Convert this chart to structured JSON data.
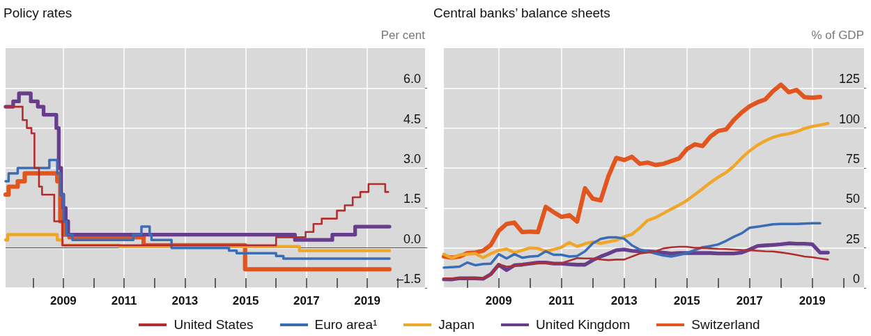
{
  "chart_data": [
    {
      "type": "step",
      "title": "Policy rates",
      "ylabel": "Per cent",
      "xlim": [
        2007.1,
        2020.9
      ],
      "xticks": [
        {
          "value": 2008,
          "label": null
        },
        2009,
        {
          "value": 2010,
          "label": null
        },
        2011,
        {
          "value": 2012,
          "label": null
        },
        2013,
        {
          "value": 2014,
          "label": null
        },
        2015,
        {
          "value": 2016,
          "label": null
        },
        2017,
        {
          "value": 2018,
          "label": null
        },
        2019,
        {
          "value": 2020,
          "label": null
        }
      ],
      "ylim": [
        -1.5,
        7.5
      ],
      "yticks": [
        {
          "value": -1.5,
          "label": "–1.5"
        },
        {
          "value": 0,
          "label": "0.0"
        },
        1.5,
        {
          "value": 3,
          "label": "3.0"
        },
        4.5,
        {
          "value": 6,
          "label": "6.0"
        }
      ],
      "grid": true,
      "legend": "bottom",
      "marker": "none",
      "ref_lines": [
        {
          "axis": "y",
          "value": 0,
          "color": "#4d4d4d"
        }
      ],
      "series": [
        {
          "name": "United States",
          "color": "#b22e2e",
          "x": [
            2007.1,
            2007.66,
            2007.8,
            2007.95,
            2008.05,
            2008.2,
            2008.3,
            2008.7,
            2008.97,
            2016.0,
            2016.97,
            2017.23,
            2017.5,
            2018.0,
            2018.26,
            2018.52,
            2018.77,
            2019.04,
            2019.59,
            2019.69
          ],
          "values": [
            5.3,
            4.8,
            4.5,
            4.3,
            3.0,
            2.3,
            2.0,
            1.0,
            0.1,
            0.4,
            0.6,
            0.9,
            1.1,
            1.4,
            1.6,
            1.9,
            2.1,
            2.4,
            2.1,
            2.1
          ]
        },
        {
          "name": "Euro area¹",
          "color": "#3a6db5",
          "x": [
            2007.1,
            2007.2,
            2007.5,
            2008.54,
            2008.8,
            2008.9,
            2009.0,
            2009.1,
            2009.3,
            2011.3,
            2011.57,
            2011.84,
            2011.9,
            2012.56,
            2014.45,
            2014.7,
            2016.0,
            2016.24,
            2019.73
          ],
          "values": [
            2.5,
            2.8,
            3.0,
            3.3,
            2.8,
            2.0,
            1.0,
            0.5,
            0.3,
            0.5,
            0.8,
            0.5,
            0.3,
            0.0,
            -0.1,
            -0.2,
            -0.3,
            -0.4,
            -0.4
          ]
        },
        {
          "name": "Japan",
          "color": "#f0a628",
          "x": [
            2007.1,
            2007.17,
            2008.8,
            2008.97,
            2010.84,
            2016.77,
            2019.73
          ],
          "values": [
            0.3,
            0.5,
            0.3,
            0.1,
            0.05,
            -0.1,
            -0.1
          ]
        },
        {
          "name": "United Kingdom",
          "color": "#673d8c",
          "x": [
            2007.1,
            2007.35,
            2007.54,
            2007.93,
            2008.16,
            2008.35,
            2008.77,
            2008.85,
            2008.93,
            2009.0,
            2009.08,
            2009.16,
            2016.62,
            2017.85,
            2018.6,
            2019.73
          ],
          "values": [
            5.3,
            5.5,
            5.8,
            5.5,
            5.3,
            5.0,
            4.5,
            3.0,
            2.0,
            1.5,
            1.0,
            0.5,
            0.3,
            0.5,
            0.8,
            0.8
          ]
        },
        {
          "name": "Switzerland",
          "color": "#e0561e",
          "x": [
            2007.1,
            2007.2,
            2007.5,
            2007.73,
            2008.8,
            2008.9,
            2009.0,
            2009.2,
            2011.64,
            2014.98,
            2019.73
          ],
          "values": [
            2.0,
            2.3,
            2.5,
            2.8,
            2.5,
            1.0,
            0.5,
            0.4,
            0.1,
            -0.8,
            -0.8
          ]
        }
      ]
    },
    {
      "type": "line",
      "title": "Central banks’ balance sheets",
      "ylabel": "% of GDP",
      "xlim": [
        2007.25,
        2020.65
      ],
      "xticks": [
        {
          "value": 2008,
          "label": null
        },
        2009,
        {
          "value": 2010,
          "label": null
        },
        2011,
        {
          "value": 2012,
          "label": null
        },
        2013,
        {
          "value": 2014,
          "label": null
        },
        2015,
        {
          "value": 2016,
          "label": null
        },
        2017,
        {
          "value": 2018,
          "label": null
        },
        2019,
        {
          "value": 2020,
          "label": null
        }
      ],
      "ylim": [
        0,
        150
      ],
      "yticks": [
        0,
        25,
        50,
        75,
        100,
        125
      ],
      "grid": true,
      "legend": "bottom",
      "marker": "none",
      "x": [
        2007.25,
        2007.5,
        2007.75,
        2008,
        2008.25,
        2008.5,
        2008.75,
        2009,
        2009.25,
        2009.5,
        2009.75,
        2010,
        2010.25,
        2010.5,
        2010.75,
        2011,
        2011.25,
        2011.5,
        2011.75,
        2012,
        2012.25,
        2012.5,
        2012.75,
        2013,
        2013.25,
        2013.5,
        2013.75,
        2014,
        2014.25,
        2014.5,
        2014.75,
        2015,
        2015.25,
        2015.5,
        2015.75,
        2016,
        2016.25,
        2016.5,
        2016.75,
        2017,
        2017.25,
        2017.5,
        2017.75,
        2018,
        2018.25,
        2018.5,
        2018.75,
        2019,
        2019.25,
        2019.5
      ],
      "series": [
        {
          "name": "United States",
          "color": "#b22e2e",
          "values": [
            6.0,
            6.0,
            6.1,
            6.1,
            6.0,
            6.0,
            8.3,
            14.8,
            13.3,
            13.7,
            14.5,
            15.2,
            15.5,
            15.5,
            15.2,
            15.5,
            17.0,
            18.6,
            18.4,
            18.4,
            17.8,
            17.4,
            17.7,
            17.7,
            19.6,
            21.5,
            22.1,
            22.9,
            24.7,
            25.4,
            25.7,
            25.7,
            25.1,
            25.0,
            24.7,
            24.4,
            24.3,
            24.0,
            23.7,
            23.6,
            23.2,
            22.9,
            22.8,
            22.2,
            21.5,
            20.6,
            19.6,
            19.2,
            18.4,
            17.7
          ]
        },
        {
          "name": "Euro area¹",
          "color": "#3a6db5",
          "values": [
            12.7,
            13.0,
            13.3,
            15.9,
            14.2,
            14.9,
            15.2,
            21.1,
            18.4,
            21.1,
            18.9,
            19.6,
            19.9,
            22.9,
            20.7,
            20.7,
            19.6,
            20.0,
            22.9,
            27.9,
            30.6,
            31.6,
            31.6,
            30.8,
            26.6,
            24.0,
            22.9,
            21.5,
            20.3,
            19.6,
            20.6,
            21.8,
            23.6,
            25.4,
            26.2,
            27.2,
            29.4,
            32.0,
            34.2,
            37.6,
            38.3,
            39.0,
            39.8,
            40.0,
            40.0,
            40.0,
            40.2,
            40.4,
            40.4,
            null
          ]
        },
        {
          "name": "Japan",
          "color": "#f0a628",
          "values": [
            21.1,
            18.6,
            20.6,
            21.1,
            21.5,
            18.9,
            21.5,
            23.5,
            24.3,
            22.1,
            23.5,
            25.0,
            24.7,
            22.9,
            24.0,
            25.4,
            28.4,
            25.9,
            27.6,
            28.8,
            27.9,
            28.8,
            29.8,
            32.0,
            33.5,
            37.6,
            42.2,
            44.0,
            46.6,
            49.3,
            51.8,
            54.7,
            58.3,
            62.0,
            65.9,
            69.3,
            72.2,
            76.2,
            81.3,
            85.7,
            89.3,
            92.0,
            94.2,
            95.6,
            96.4,
            97.8,
            99.7,
            101.0,
            101.9,
            102.9
          ]
        },
        {
          "name": "United Kingdom",
          "color": "#673d8c",
          "values": [
            5.4,
            5.3,
            6.0,
            6.0,
            6.0,
            5.7,
            8.6,
            14.5,
            11.1,
            14.2,
            14.5,
            15.2,
            15.9,
            15.9,
            15.2,
            15.2,
            14.8,
            14.5,
            14.5,
            17.4,
            19.6,
            21.5,
            23.6,
            24.0,
            23.2,
            22.9,
            22.9,
            22.5,
            22.1,
            21.5,
            21.8,
            21.8,
            21.8,
            21.8,
            21.8,
            21.5,
            21.5,
            21.5,
            22.1,
            24.0,
            26.2,
            26.6,
            26.9,
            27.3,
            27.9,
            27.6,
            27.6,
            27.3,
            22.1,
            22.1
          ]
        },
        {
          "name": "Switzerland",
          "color": "#e0561e",
          "values": [
            19.6,
            18.9,
            19.6,
            21.8,
            22.1,
            23.2,
            26.9,
            35.7,
            40.0,
            40.8,
            34.9,
            35.2,
            34.9,
            50.7,
            47.4,
            44.4,
            45.5,
            41.5,
            62.3,
            55.8,
            54.7,
            70.0,
            81.3,
            80.0,
            82.0,
            77.6,
            78.4,
            76.9,
            77.6,
            79.3,
            81.0,
            86.8,
            89.8,
            88.7,
            94.6,
            98.2,
            99.1,
            105.1,
            109.8,
            113.6,
            116.1,
            117.9,
            123.1,
            127.1,
            122.4,
            123.8,
            119.3,
            119.0,
            119.4,
            null
          ]
        }
      ]
    }
  ]
}
